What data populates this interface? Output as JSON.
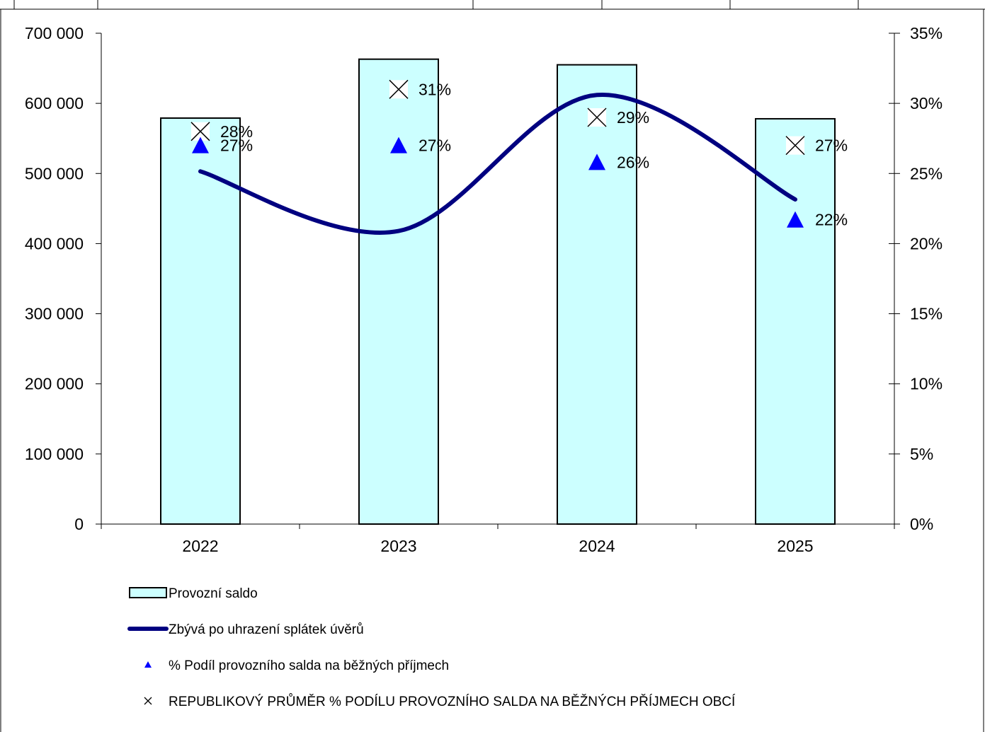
{
  "chart_data": {
    "type": "bar",
    "categories": [
      "2022",
      "2023",
      "2024",
      "2025"
    ],
    "y_left": {
      "range": [
        0,
        700000
      ],
      "ticks": [
        0,
        100000,
        200000,
        300000,
        400000,
        500000,
        600000,
        700000
      ],
      "tick_labels": [
        "0",
        "100 000",
        "200 000",
        "300 000",
        "400 000",
        "500 000",
        "600 000",
        "700 000"
      ]
    },
    "y_right": {
      "range": [
        0,
        35
      ],
      "ticks": [
        0,
        5,
        10,
        15,
        20,
        25,
        30,
        35
      ],
      "tick_labels": [
        "0%",
        "5%",
        "10%",
        "15%",
        "20%",
        "25%",
        "30%",
        "35%"
      ]
    },
    "grid": false,
    "legend_position": "bottom",
    "series": [
      {
        "name": "Provozní saldo",
        "kind": "bar",
        "axis": "left",
        "color": "#ccffff",
        "values": [
          579000,
          663000,
          655000,
          578000
        ]
      },
      {
        "name": "Zbývá po uhrazení splátek úvěrů",
        "kind": "line",
        "smooth": true,
        "axis": "left",
        "color": "#000080",
        "values": [
          503000,
          418000,
          612000,
          463000
        ]
      },
      {
        "name": "% Podíl provozního salda na běžných příjmech",
        "kind": "marker",
        "marker": "triangle",
        "axis": "right",
        "color": "#0000ff",
        "values": [
          27,
          27,
          26,
          22
        ],
        "plot_values": [
          27,
          27,
          25.8,
          21.7
        ],
        "labels": [
          "27%",
          "27%",
          "26%",
          "22%"
        ]
      },
      {
        "name": "REPUBLIKOVÝ PRŮMĚR % PODÍLU PROVOZNÍHO SALDA NA BĚŽNÝCH PŘÍJMECH OBCÍ",
        "kind": "marker",
        "marker": "x",
        "axis": "right",
        "color": "#000000",
        "values": [
          28,
          31,
          29,
          27
        ],
        "plot_values": [
          28,
          31,
          29,
          27
        ],
        "labels": [
          "28%",
          "31%",
          "29%",
          "27%"
        ]
      }
    ]
  }
}
